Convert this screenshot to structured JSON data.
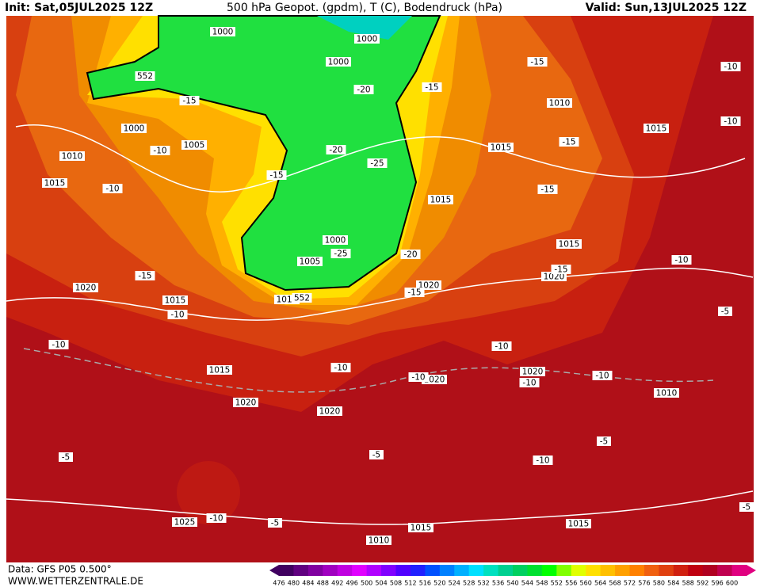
{
  "header": {
    "init": "Init: Sat,05JUL2025 12Z",
    "title": "500 hPa Geopot. (gpdm), T (C), Bodendruck (hPa)",
    "valid": "Valid: Sun,13JUL2025 12Z"
  },
  "footer": {
    "source": "Data: GFS P05 0.500°",
    "website": "WWW.WETTERZENTRALE.DE"
  },
  "colorbar": {
    "labels": [
      476,
      480,
      484,
      488,
      492,
      496,
      500,
      504,
      508,
      512,
      516,
      520,
      524,
      528,
      532,
      536,
      540,
      544,
      548,
      552,
      556,
      560,
      564,
      568,
      572,
      576,
      580,
      584,
      588,
      592,
      596,
      600
    ],
    "colors": [
      "#400060",
      "#600080",
      "#8000a0",
      "#a000c0",
      "#c000e0",
      "#e000ff",
      "#b000ff",
      "#8000ff",
      "#5000ff",
      "#2020ff",
      "#0050ff",
      "#0080ff",
      "#00b0ff",
      "#00e0ff",
      "#00e0c0",
      "#00d090",
      "#00d060",
      "#00e030",
      "#00ff00",
      "#80ff00",
      "#e0ff00",
      "#ffe000",
      "#ffc000",
      "#ffa000",
      "#ff8000",
      "#f06010",
      "#e04010",
      "#d02010",
      "#c00010",
      "#b00020",
      "#c00050",
      "#e00080"
    ]
  },
  "map_labels": [
    "1000",
    "1000",
    "1000",
    "1000",
    "1010",
    "1015",
    "1005",
    "1020",
    "1015",
    "1010",
    "1005",
    "1000",
    "1015",
    "1015",
    "1010",
    "1015",
    "1015",
    "1020",
    "1020",
    "1015",
    "1020",
    "1020",
    "1020",
    "1020",
    "1010",
    "1025",
    "1015",
    "1015",
    "1010",
    "-15",
    "-10",
    "-10",
    "-15",
    "-10",
    "-10",
    "-15",
    "-20",
    "-20",
    "-25",
    "-25",
    "-20",
    "-15",
    "-15",
    "-15",
    "-15",
    "-10",
    "-10",
    "-10",
    "-15",
    "-15",
    "-10",
    "-10",
    "-10",
    "-10",
    "-10",
    "-5",
    "-5",
    "-5",
    "-5",
    "-10",
    "-10",
    "-5",
    "-5",
    "552",
    "552"
  ]
}
